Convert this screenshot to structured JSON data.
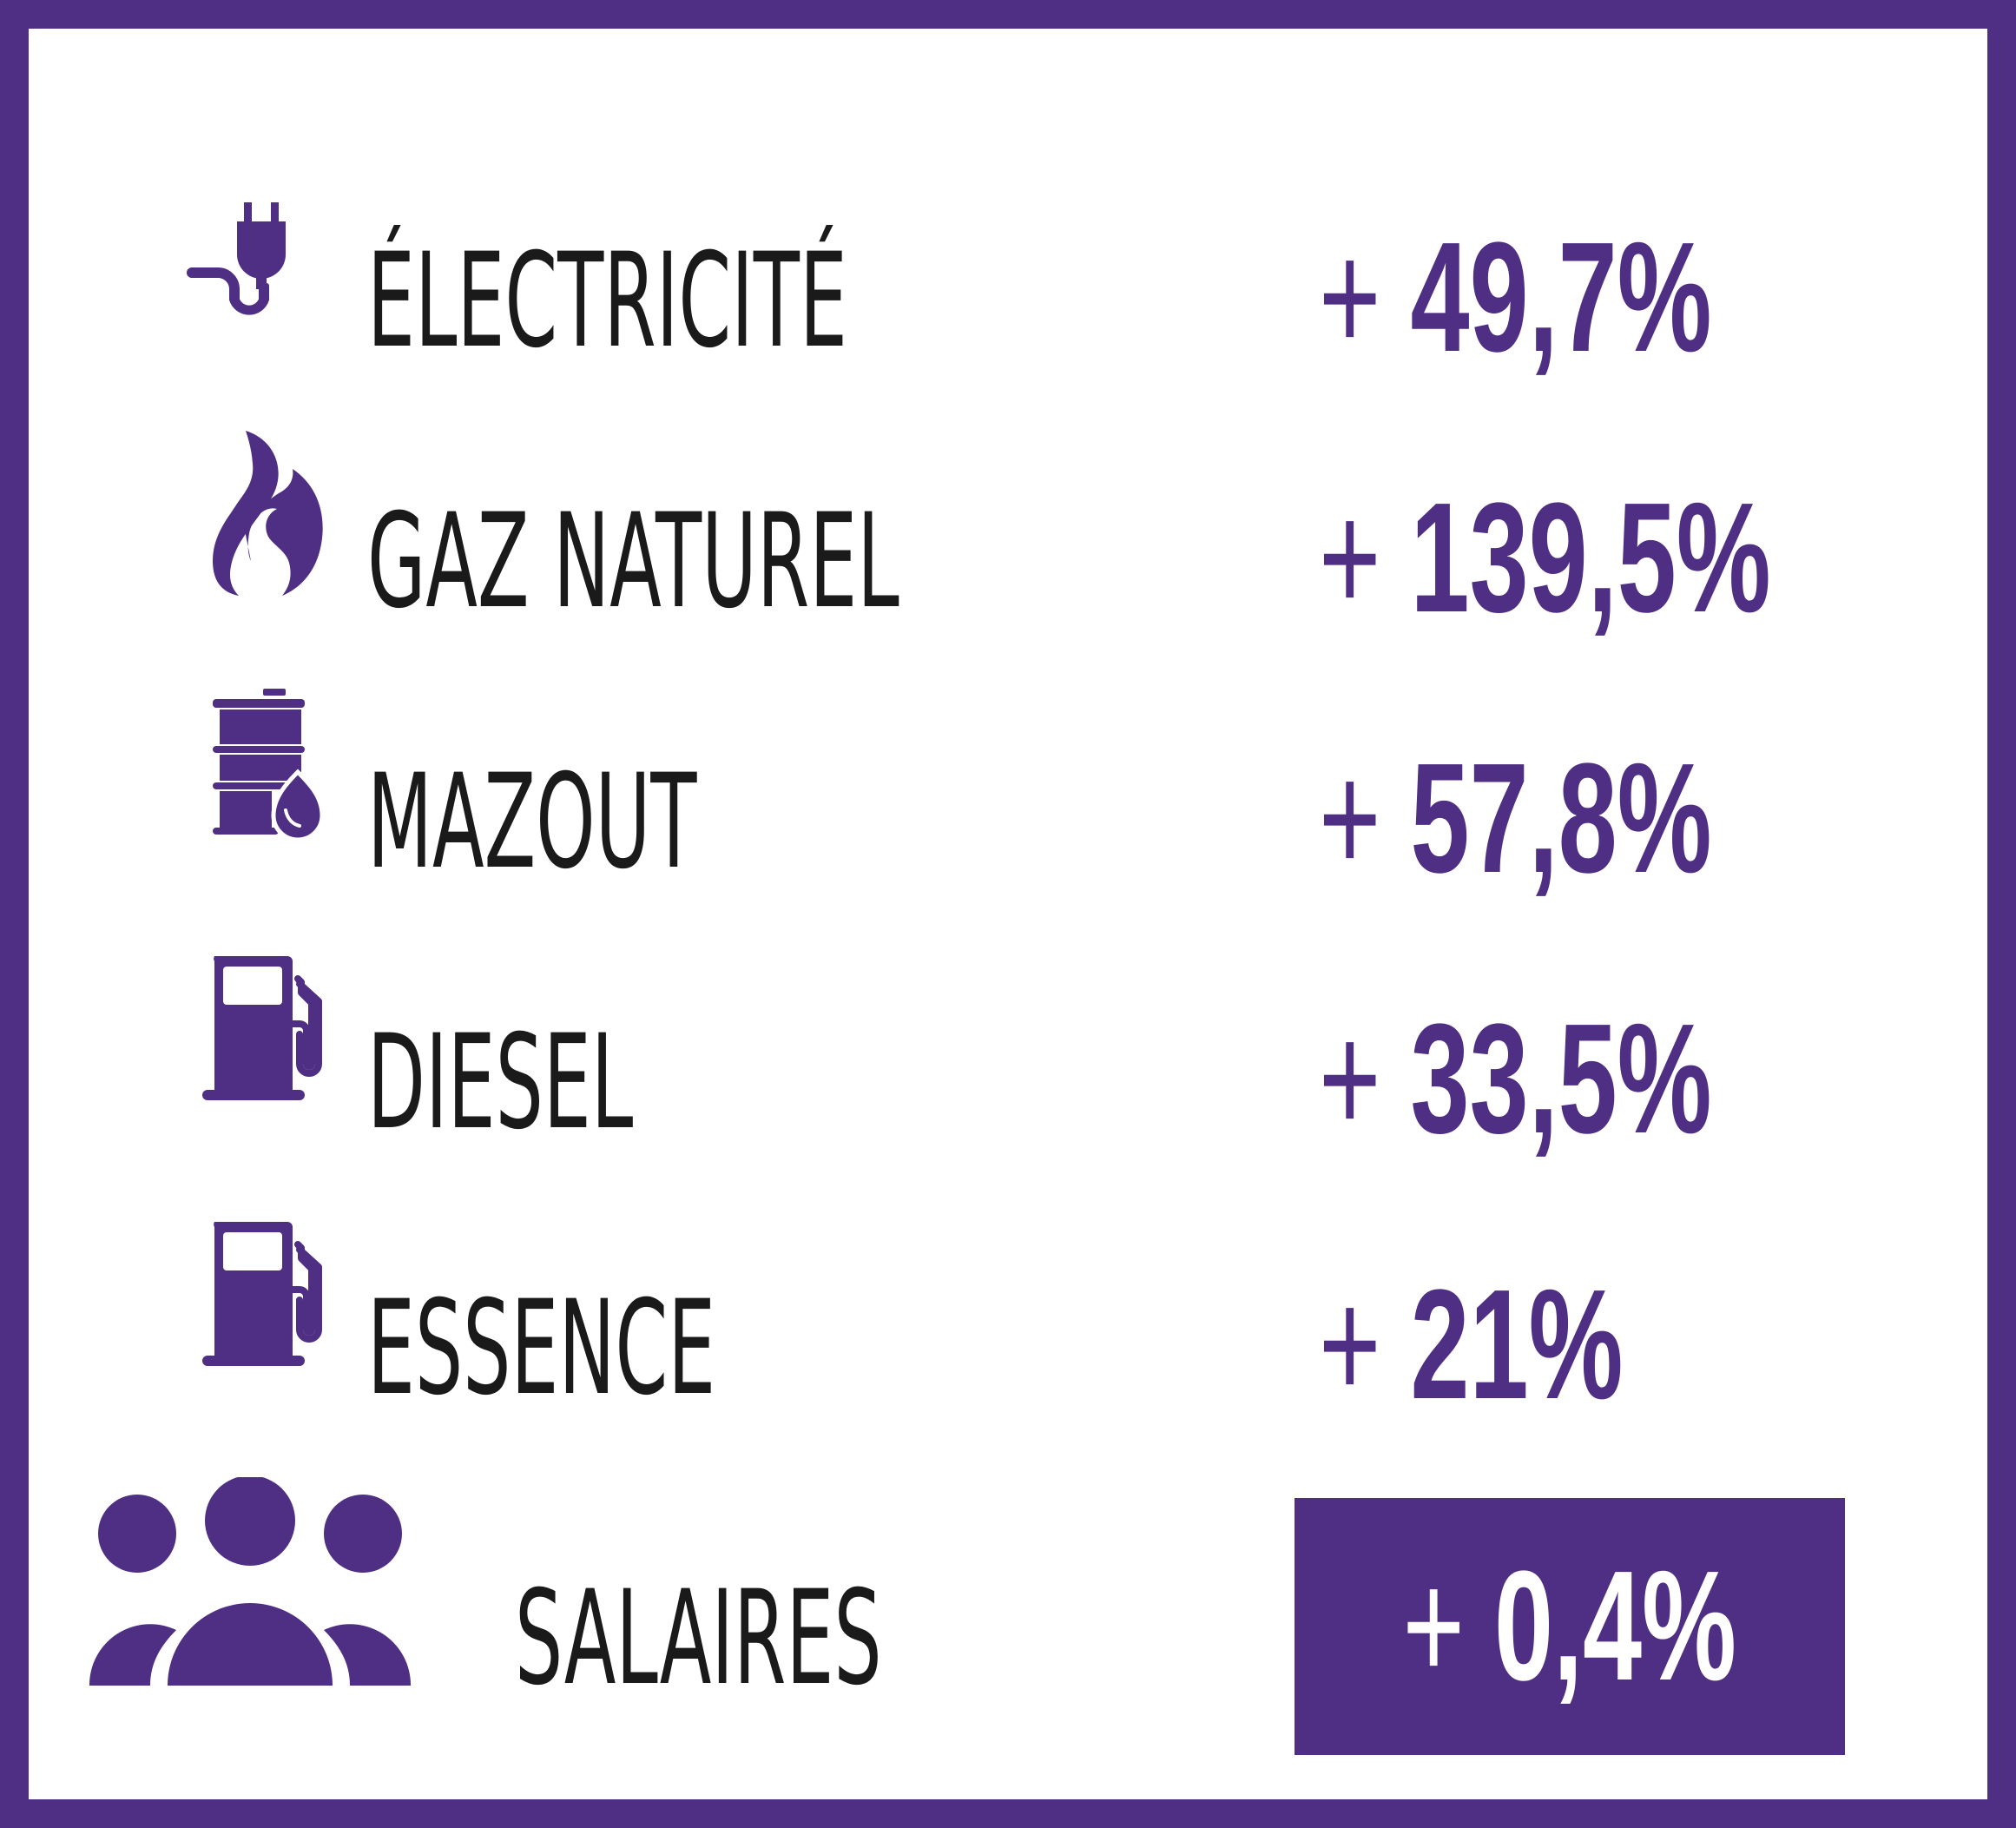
{
  "colors": {
    "accent": "#4f2f83",
    "text": "#1a1a1a",
    "background": "#ffffff"
  },
  "rows": [
    {
      "label": "ÉLECTRICITÉ",
      "plus": "+",
      "value": "49,7%",
      "icon": "electric-plug-icon"
    },
    {
      "label": "GAZ NATUREL",
      "plus": "+",
      "value": "139,5%",
      "icon": "flame-icon"
    },
    {
      "label": "MAZOUT",
      "plus": "+",
      "value": "57,8%",
      "icon": "oil-barrel-icon"
    },
    {
      "label": "DIESEL",
      "plus": "+",
      "value": "33,5%",
      "icon": "fuel-pump-icon"
    },
    {
      "label": "ESSENCE",
      "plus": "+",
      "value": "21%",
      "icon": "fuel-pump-icon"
    }
  ],
  "salaires": {
    "label": "SALAIRES",
    "plus": "+",
    "value": "0,4%",
    "icon": "people-group-icon"
  }
}
